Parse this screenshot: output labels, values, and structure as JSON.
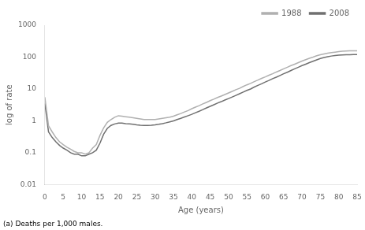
{
  "chart_data": {
    "type": "line",
    "xlabel": "Age (years)",
    "ylabel": "log of rate",
    "annotations": [
      "(a) Deaths per 1,000 males."
    ],
    "log": "y",
    "grid": false,
    "legend": "upper right",
    "xlim": [
      0,
      85
    ],
    "ylim": [
      0.01,
      1000
    ],
    "xticks": [
      0,
      5,
      10,
      15,
      20,
      25,
      30,
      35,
      40,
      45,
      50,
      55,
      60,
      65,
      70,
      75,
      80,
      85
    ],
    "yticks": [
      0.01,
      0.1,
      1,
      10,
      100,
      1000
    ],
    "x": [
      0,
      1,
      2,
      3,
      4,
      5,
      6,
      7,
      8,
      9,
      10,
      11,
      12,
      13,
      14,
      15,
      16,
      17,
      18,
      19,
      20,
      21,
      22,
      23,
      24,
      25,
      26,
      27,
      28,
      29,
      30,
      31,
      32,
      33,
      34,
      35,
      36,
      37,
      38,
      39,
      40,
      41,
      42,
      43,
      44,
      45,
      46,
      47,
      48,
      49,
      50,
      51,
      52,
      53,
      54,
      55,
      56,
      57,
      58,
      59,
      60,
      61,
      62,
      63,
      64,
      65,
      66,
      67,
      68,
      69,
      70,
      71,
      72,
      73,
      74,
      75,
      76,
      77,
      78,
      79,
      80,
      81,
      82,
      83,
      84,
      85
    ],
    "series": [
      {
        "name": "1988",
        "color": "#b0b0b0",
        "values": [
          5.5,
          0.7,
          0.45,
          0.3,
          0.22,
          0.18,
          0.15,
          0.13,
          0.11,
          0.1,
          0.1,
          0.09,
          0.1,
          0.14,
          0.18,
          0.35,
          0.6,
          0.9,
          1.1,
          1.3,
          1.45,
          1.4,
          1.35,
          1.3,
          1.25,
          1.2,
          1.15,
          1.1,
          1.1,
          1.1,
          1.1,
          1.15,
          1.2,
          1.25,
          1.3,
          1.4,
          1.55,
          1.7,
          1.9,
          2.1,
          2.4,
          2.7,
          3.0,
          3.4,
          3.8,
          4.3,
          4.8,
          5.4,
          6.0,
          6.7,
          7.5,
          8.4,
          9.5,
          10.5,
          12.0,
          13.5,
          15.0,
          17.0,
          19.0,
          21.5,
          24.0,
          27.0,
          30.0,
          34.0,
          38.0,
          43.0,
          48.0,
          54.0,
          60.0,
          67.0,
          75.0,
          83.0,
          92.0,
          100.0,
          110.0,
          118.0,
          125.0,
          132.0,
          138.0,
          143.0,
          148.0,
          152.0,
          155.0,
          157.0,
          158.0,
          158.0
        ]
      },
      {
        "name": "2008",
        "color": "#707070",
        "values": [
          3.5,
          0.45,
          0.3,
          0.22,
          0.17,
          0.14,
          0.12,
          0.1,
          0.09,
          0.09,
          0.08,
          0.08,
          0.09,
          0.1,
          0.12,
          0.2,
          0.38,
          0.58,
          0.72,
          0.8,
          0.85,
          0.85,
          0.82,
          0.8,
          0.78,
          0.75,
          0.73,
          0.72,
          0.72,
          0.73,
          0.75,
          0.78,
          0.82,
          0.87,
          0.93,
          1.0,
          1.1,
          1.2,
          1.32,
          1.45,
          1.6,
          1.8,
          2.0,
          2.25,
          2.55,
          2.85,
          3.2,
          3.6,
          4.0,
          4.5,
          5.0,
          5.6,
          6.3,
          7.1,
          8.0,
          9.0,
          10.0,
          11.5,
          13.0,
          14.5,
          16.5,
          18.5,
          21.0,
          23.5,
          26.5,
          30.0,
          33.5,
          38.0,
          43.0,
          48.0,
          54.0,
          60.0,
          67.0,
          74.0,
          82.0,
          90.0,
          97.0,
          103.0,
          108.0,
          112.0,
          115.0,
          117.0,
          118.0,
          119.0,
          119.5,
          120.0
        ]
      }
    ]
  }
}
